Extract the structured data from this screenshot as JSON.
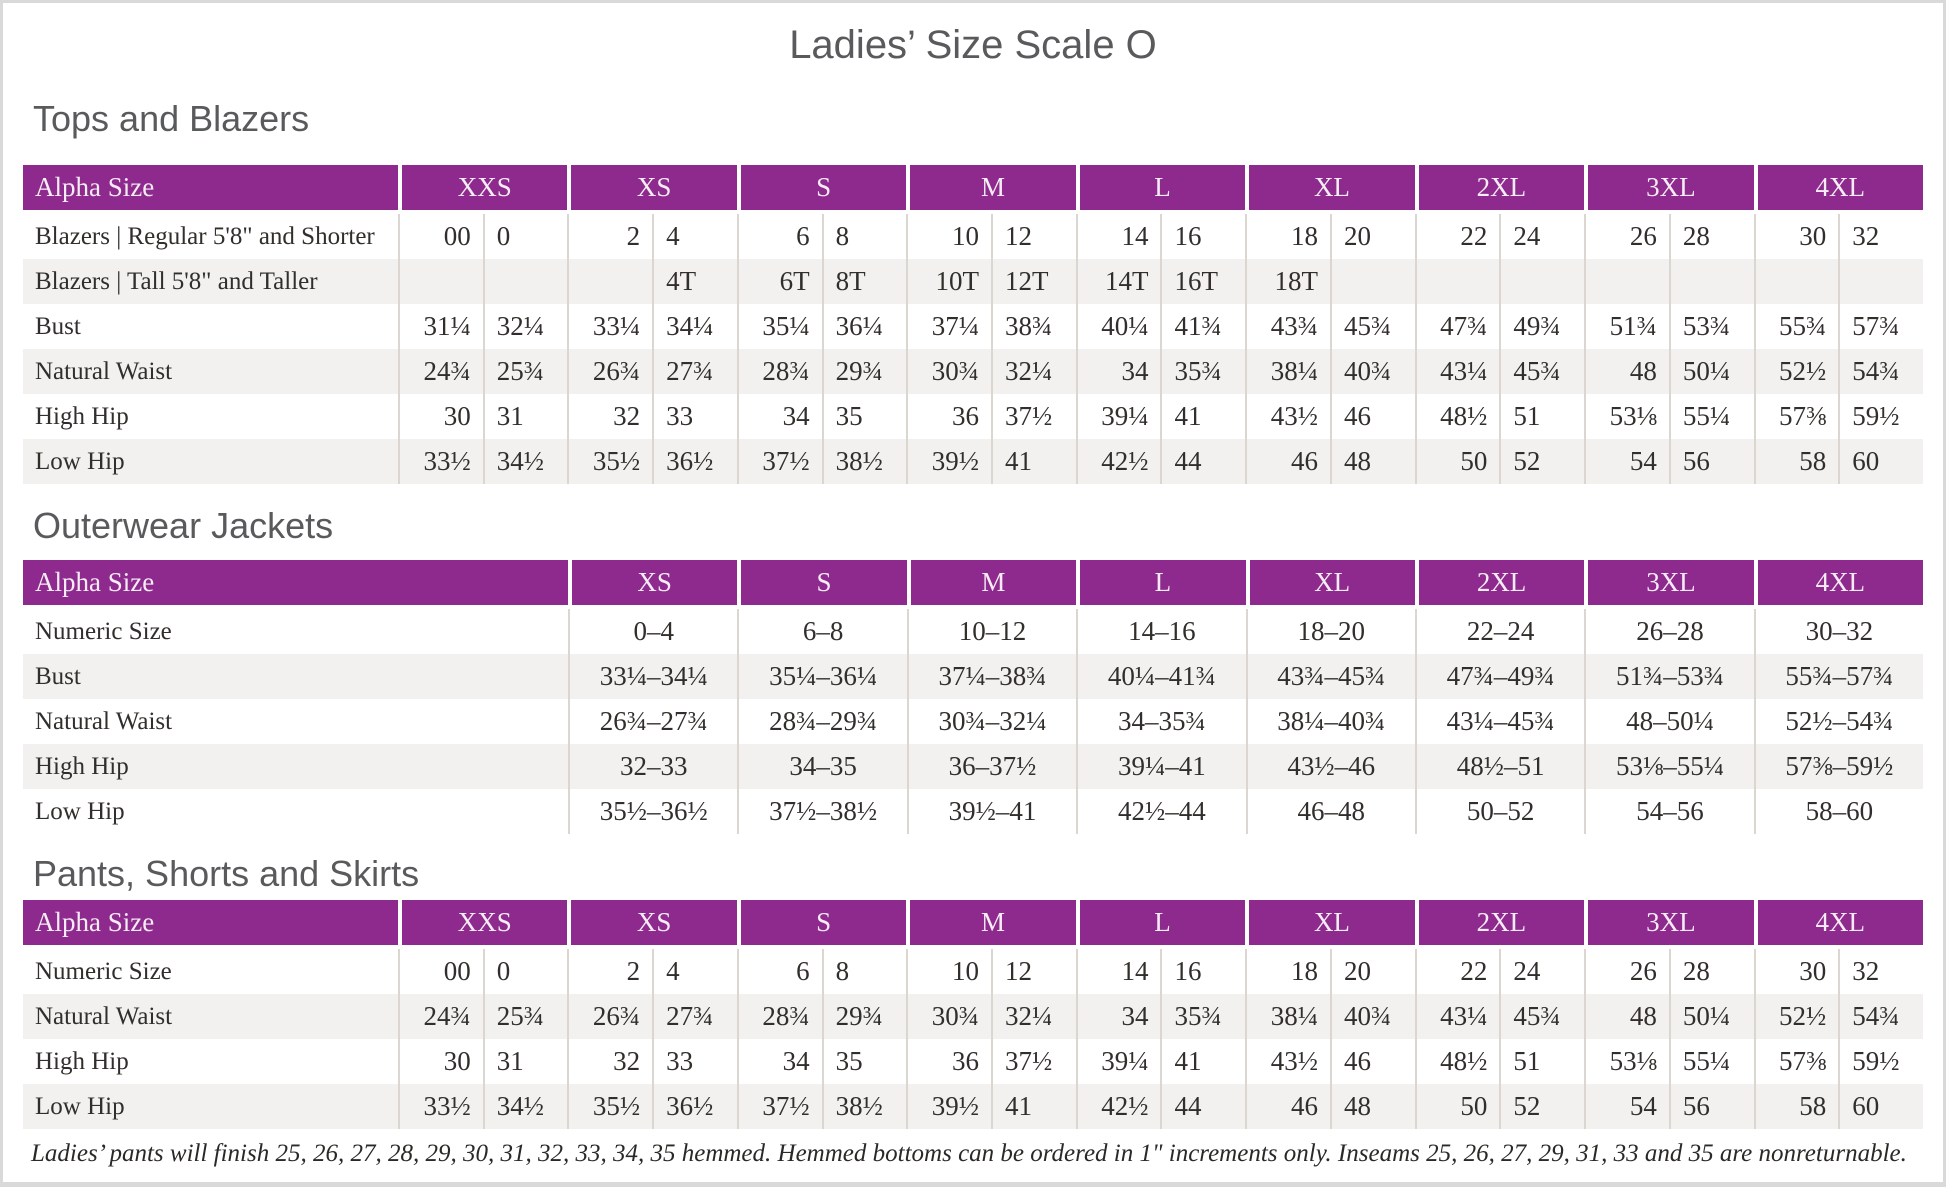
{
  "page": {
    "title": "Ladies’ Size Scale O"
  },
  "colors": {
    "accent_purple": "#8e2a8d",
    "stripe": "#f2f1ef",
    "heading_gray": "#595a5c"
  },
  "sections": [
    {
      "heading": "Tops and Blazers",
      "type": "paired",
      "header": [
        "Alpha Size",
        "XXS",
        "XS",
        "S",
        "M",
        "L",
        "XL",
        "2XL",
        "3XL",
        "4XL"
      ],
      "rows": [
        {
          "label": "Blazers  |  Regular 5'8\" and Shorter",
          "cells": [
            [
              "00",
              "0"
            ],
            [
              "2",
              "4"
            ],
            [
              "6",
              "8"
            ],
            [
              "10",
              "12"
            ],
            [
              "14",
              "16"
            ],
            [
              "18",
              "20"
            ],
            [
              "22",
              "24"
            ],
            [
              "26",
              "28"
            ],
            [
              "30",
              "32"
            ]
          ]
        },
        {
          "label": "Blazers  |  Tall 5'8\" and Taller",
          "cells": [
            [
              "",
              ""
            ],
            [
              "",
              "4T"
            ],
            [
              "6T",
              "8T"
            ],
            [
              "10T",
              "12T"
            ],
            [
              "14T",
              "16T"
            ],
            [
              "18T",
              ""
            ],
            [
              "",
              ""
            ],
            [
              "",
              ""
            ],
            [
              "",
              ""
            ]
          ]
        },
        {
          "label": "Bust",
          "cells": [
            [
              "31¼",
              "32¼"
            ],
            [
              "33¼",
              "34¼"
            ],
            [
              "35¼",
              "36¼"
            ],
            [
              "37¼",
              "38¾"
            ],
            [
              "40¼",
              "41¾"
            ],
            [
              "43¾",
              "45¾"
            ],
            [
              "47¾",
              "49¾"
            ],
            [
              "51¾",
              "53¾"
            ],
            [
              "55¾",
              "57¾"
            ]
          ]
        },
        {
          "label": "Natural Waist",
          "cells": [
            [
              "24¾",
              "25¾"
            ],
            [
              "26¾",
              "27¾"
            ],
            [
              "28¾",
              "29¾"
            ],
            [
              "30¾",
              "32¼"
            ],
            [
              "34",
              "35¾"
            ],
            [
              "38¼",
              "40¾"
            ],
            [
              "43¼",
              "45¾"
            ],
            [
              "48",
              "50¼"
            ],
            [
              "52½",
              "54¾"
            ]
          ]
        },
        {
          "label": "High Hip",
          "cells": [
            [
              "30",
              "31"
            ],
            [
              "32",
              "33"
            ],
            [
              "34",
              "35"
            ],
            [
              "36",
              "37½"
            ],
            [
              "39¼",
              "41"
            ],
            [
              "43½",
              "46"
            ],
            [
              "48½",
              "51"
            ],
            [
              "53⅛",
              "55¼"
            ],
            [
              "57⅜",
              "59½"
            ]
          ]
        },
        {
          "label": "Low Hip",
          "cells": [
            [
              "33½",
              "34½"
            ],
            [
              "35½",
              "36½"
            ],
            [
              "37½",
              "38½"
            ],
            [
              "39½",
              "41"
            ],
            [
              "42½",
              "44"
            ],
            [
              "46",
              "48"
            ],
            [
              "50",
              "52"
            ],
            [
              "54",
              "56"
            ],
            [
              "58",
              "60"
            ]
          ]
        }
      ]
    },
    {
      "heading": "Outerwear Jackets",
      "type": "single",
      "header": [
        "Alpha Size",
        "XS",
        "S",
        "M",
        "L",
        "XL",
        "2XL",
        "3XL",
        "4XL"
      ],
      "rows": [
        {
          "label": "Numeric Size",
          "cells": [
            "0–4",
            "6–8",
            "10–12",
            "14–16",
            "18–20",
            "22–24",
            "26–28",
            "30–32"
          ]
        },
        {
          "label": "Bust",
          "cells": [
            "33¼–34¼",
            "35¼–36¼",
            "37¼–38¾",
            "40¼–41¾",
            "43¾–45¾",
            "47¾–49¾",
            "51¾–53¾",
            "55¾–57¾"
          ]
        },
        {
          "label": "Natural Waist",
          "cells": [
            "26¾–27¾",
            "28¾–29¾",
            "30¾–32¼",
            "34–35¾",
            "38¼–40¾",
            "43¼–45¾",
            "48–50¼",
            "52½–54¾"
          ]
        },
        {
          "label": "High Hip",
          "cells": [
            "32–33",
            "34–35",
            "36–37½",
            "39¼–41",
            "43½–46",
            "48½–51",
            "53⅛–55¼",
            "57⅜–59½"
          ]
        },
        {
          "label": "Low Hip",
          "cells": [
            "35½–36½",
            "37½–38½",
            "39½–41",
            "42½–44",
            "46–48",
            "50–52",
            "54–56",
            "58–60"
          ]
        }
      ]
    },
    {
      "heading": "Pants, Shorts and Skirts",
      "type": "paired",
      "header": [
        "Alpha Size",
        "XXS",
        "XS",
        "S",
        "M",
        "L",
        "XL",
        "2XL",
        "3XL",
        "4XL"
      ],
      "rows": [
        {
          "label": "Numeric Size",
          "cells": [
            [
              "00",
              "0"
            ],
            [
              "2",
              "4"
            ],
            [
              "6",
              "8"
            ],
            [
              "10",
              "12"
            ],
            [
              "14",
              "16"
            ],
            [
              "18",
              "20"
            ],
            [
              "22",
              "24"
            ],
            [
              "26",
              "28"
            ],
            [
              "30",
              "32"
            ]
          ]
        },
        {
          "label": "Natural Waist",
          "cells": [
            [
              "24¾",
              "25¾"
            ],
            [
              "26¾",
              "27¾"
            ],
            [
              "28¾",
              "29¾"
            ],
            [
              "30¾",
              "32¼"
            ],
            [
              "34",
              "35¾"
            ],
            [
              "38¼",
              "40¾"
            ],
            [
              "43¼",
              "45¾"
            ],
            [
              "48",
              "50¼"
            ],
            [
              "52½",
              "54¾"
            ]
          ]
        },
        {
          "label": "High Hip",
          "cells": [
            [
              "30",
              "31"
            ],
            [
              "32",
              "33"
            ],
            [
              "34",
              "35"
            ],
            [
              "36",
              "37½"
            ],
            [
              "39¼",
              "41"
            ],
            [
              "43½",
              "46"
            ],
            [
              "48½",
              "51"
            ],
            [
              "53⅛",
              "55¼"
            ],
            [
              "57⅜",
              "59½"
            ]
          ]
        },
        {
          "label": "Low Hip",
          "cells": [
            [
              "33½",
              "34½"
            ],
            [
              "35½",
              "36½"
            ],
            [
              "37½",
              "38½"
            ],
            [
              "39½",
              "41"
            ],
            [
              "42½",
              "44"
            ],
            [
              "46",
              "48"
            ],
            [
              "50",
              "52"
            ],
            [
              "54",
              "56"
            ],
            [
              "58",
              "60"
            ]
          ]
        }
      ]
    }
  ],
  "footnote": "Ladies’ pants will finish 25, 26, 27, 28, 29, 30, 31, 32, 33, 34, 35 hemmed. Hemmed bottoms can be ordered in 1\" increments only. Inseams 25, 26, 27, 29, 31, 33 and 35 are nonreturnable."
}
